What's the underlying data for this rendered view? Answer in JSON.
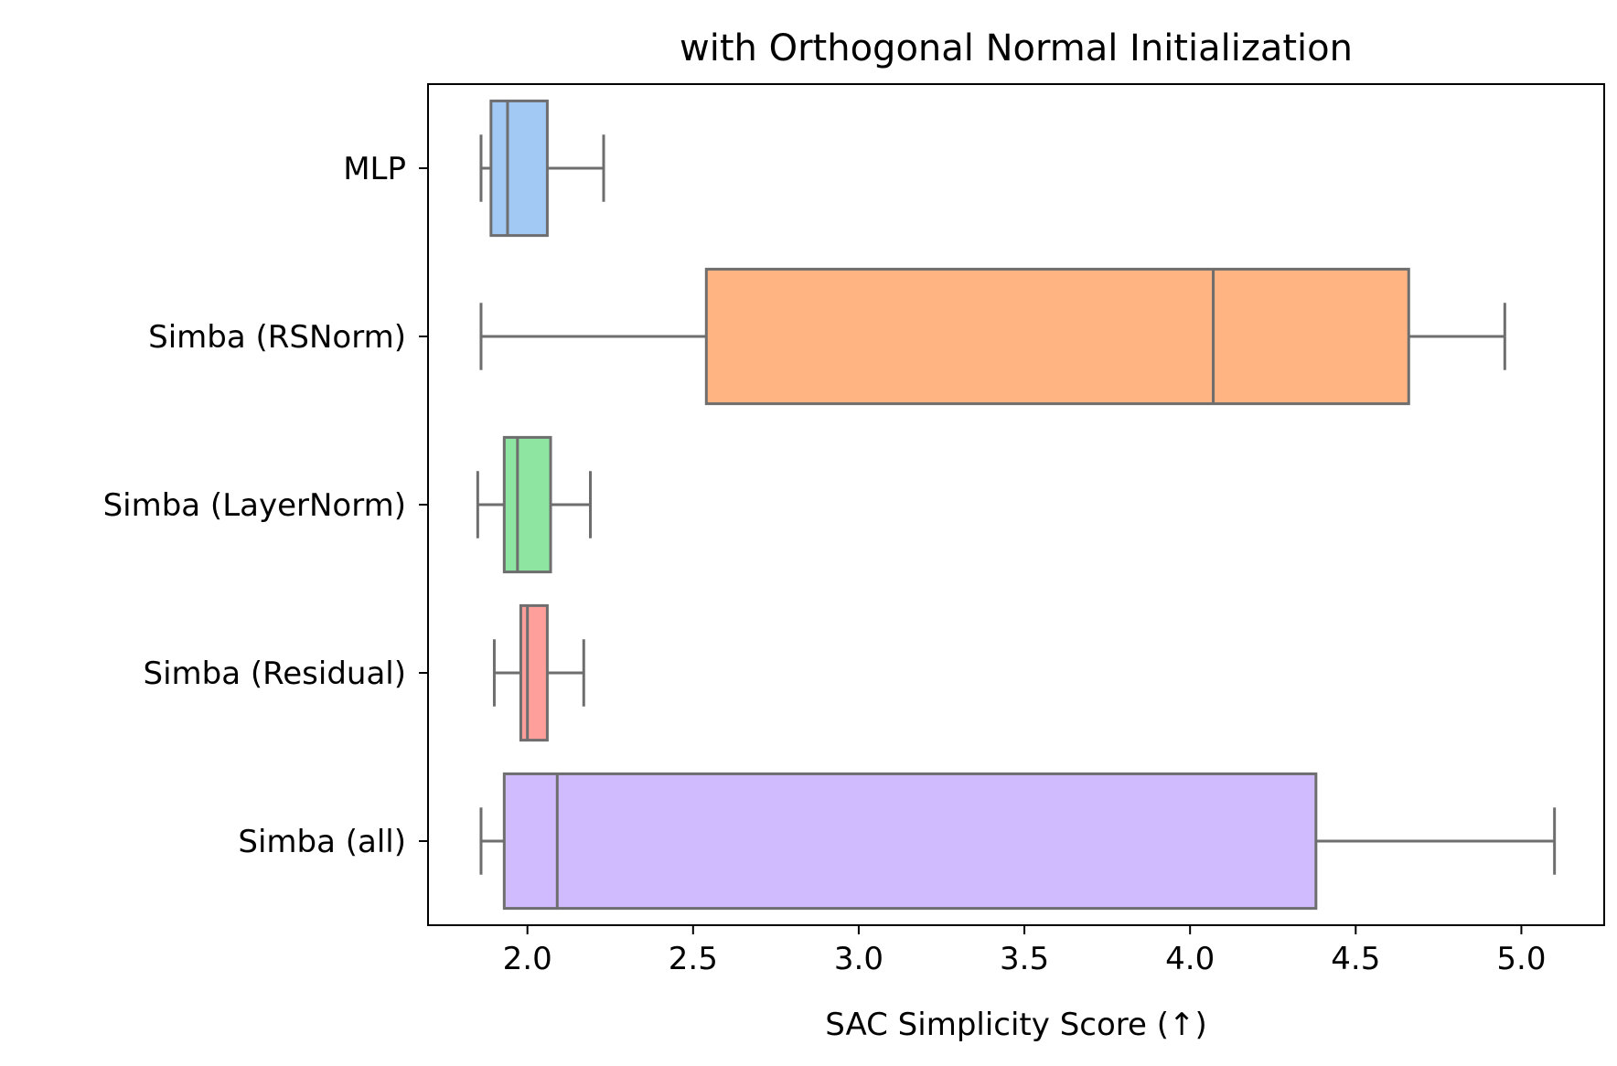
{
  "chart_data": {
    "type": "boxplot",
    "orientation": "horizontal",
    "title": "with Orthogonal Normal Initialization",
    "xlabel": "SAC Simplicity Score (↑)",
    "ylabel": "",
    "xlim": [
      1.7,
      5.25
    ],
    "xticks": [
      2.0,
      2.5,
      3.0,
      3.5,
      4.0,
      4.5,
      5.0
    ],
    "xtick_labels": [
      "2.0",
      "2.5",
      "3.0",
      "3.5",
      "4.0",
      "4.5",
      "5.0"
    ],
    "grid": false,
    "categories": [
      "MLP",
      "Simba (RSNorm)",
      "Simba (LayerNorm)",
      "Simba (Residual)",
      "Simba (all)"
    ],
    "series": [
      {
        "category": "MLP",
        "whisker_low": 1.86,
        "q1": 1.89,
        "median": 1.94,
        "q3": 2.06,
        "whisker_high": 2.23,
        "color": "#a1c9f4"
      },
      {
        "category": "Simba (RSNorm)",
        "whisker_low": 1.86,
        "q1": 2.54,
        "median": 4.07,
        "q3": 4.66,
        "whisker_high": 4.95,
        "color": "#ffb482"
      },
      {
        "category": "Simba (LayerNorm)",
        "whisker_low": 1.85,
        "q1": 1.93,
        "median": 1.97,
        "q3": 2.07,
        "whisker_high": 2.19,
        "color": "#8de5a1"
      },
      {
        "category": "Simba (Residual)",
        "whisker_low": 1.9,
        "q1": 1.98,
        "median": 2.0,
        "q3": 2.06,
        "whisker_high": 2.17,
        "color": "#ff9f9b"
      },
      {
        "category": "Simba (all)",
        "whisker_low": 1.86,
        "q1": 1.93,
        "median": 2.09,
        "q3": 4.38,
        "whisker_high": 5.1,
        "color": "#d0bbff"
      }
    ],
    "line_color": "#6e6e6e"
  }
}
